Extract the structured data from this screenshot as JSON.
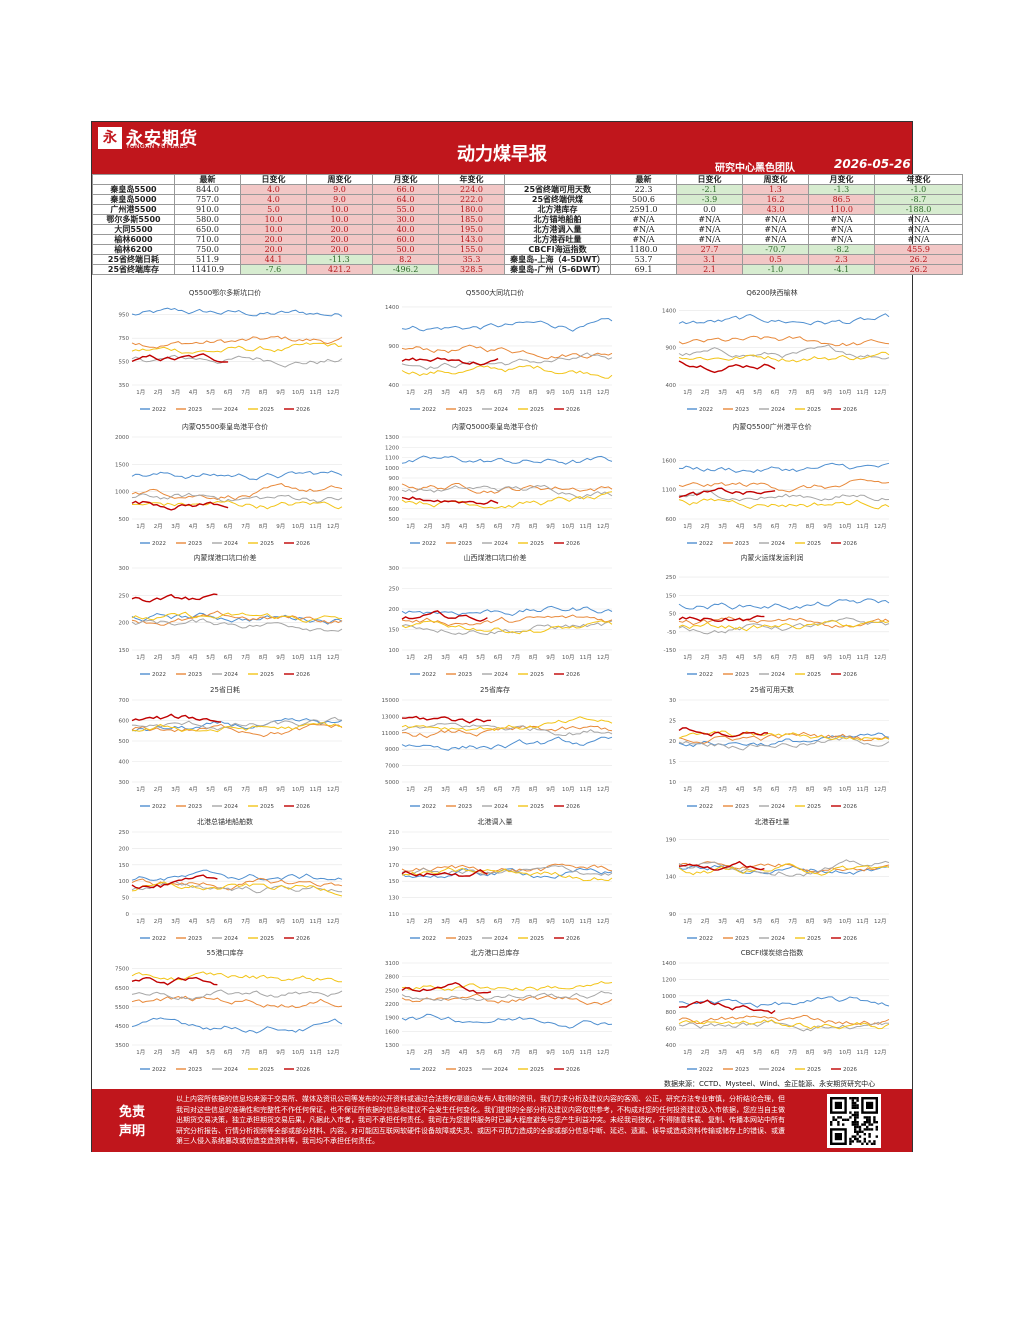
{
  "header": {
    "logo_cn": "永安期货",
    "logo_en": "YONGAN FUTURES",
    "title": "动力煤早报",
    "team": "研究中心黑色团队",
    "date": "2026-05-26"
  },
  "table": {
    "headers_left": [
      "",
      "最新",
      "日变化",
      "周变化",
      "月变化",
      "年变化"
    ],
    "headers_right": [
      "",
      "最新",
      "日变化",
      "周变化",
      "月变化",
      "年变化"
    ],
    "rows": [
      {
        "l": [
          "秦皇岛5500",
          "844.0",
          "4.0",
          "9.0",
          "66.0",
          "224.0"
        ],
        "r": [
          "25省终端可用天数",
          "22.3",
          "-2.1",
          "1.3",
          "-1.3",
          "-1.0"
        ]
      },
      {
        "l": [
          "秦皇岛5000",
          "757.0",
          "4.0",
          "9.0",
          "64.0",
          "222.0"
        ],
        "r": [
          "25省终端供煤",
          "500.6",
          "-3.9",
          "16.2",
          "86.5",
          "-8.7"
        ]
      },
      {
        "l": [
          "广州港5500",
          "910.0",
          "5.0",
          "10.0",
          "55.0",
          "180.0"
        ],
        "r": [
          "北方港库存",
          "2591.0",
          "0.0",
          "43.0",
          "110.0",
          "-188.0"
        ]
      },
      {
        "l": [
          "鄂尔多斯5500",
          "580.0",
          "10.0",
          "10.0",
          "30.0",
          "185.0"
        ],
        "r": [
          "北方锚地船舶",
          "#N/A",
          "#N/A",
          "#N/A",
          "#N/A",
          "#N/A"
        ]
      },
      {
        "l": [
          "大同5500",
          "650.0",
          "10.0",
          "20.0",
          "40.0",
          "195.0"
        ],
        "r": [
          "北方港调入量",
          "#N/A",
          "#N/A",
          "#N/A",
          "#N/A",
          "#N/A"
        ]
      },
      {
        "l": [
          "榆林6000",
          "710.0",
          "20.0",
          "20.0",
          "60.0",
          "143.0"
        ],
        "r": [
          "北方港吞吐量",
          "#N/A",
          "#N/A",
          "#N/A",
          "#N/A",
          "#N/A"
        ]
      },
      {
        "l": [
          "榆林6200",
          "750.0",
          "20.0",
          "20.0",
          "50.0",
          "155.0"
        ],
        "r": [
          "CBCFI海运指数",
          "1180.0",
          "27.7",
          "-70.7",
          "-8.2",
          "455.9"
        ]
      },
      {
        "l": [
          "25省终端日耗",
          "511.9",
          "44.1",
          "-11.3",
          "8.2",
          "35.3"
        ],
        "r": [
          "秦皇岛-上海（4-5DWT）",
          "53.7",
          "3.1",
          "0.5",
          "2.3",
          "26.2"
        ]
      },
      {
        "l": [
          "25省终端库存",
          "11410.9",
          "-7.6",
          "421.2",
          "-496.2",
          "328.5"
        ],
        "r": [
          "秦皇岛-广州（5-6DWT）",
          "69.1",
          "2.1",
          "-1.0",
          "-4.1",
          "26.2"
        ]
      }
    ]
  },
  "legend": [
    "2022",
    "2023",
    "2024",
    "2025",
    "2026"
  ],
  "months": [
    "1月",
    "2月",
    "3月",
    "4月",
    "5月",
    "6月",
    "7月",
    "8月",
    "9月",
    "10月",
    "11月",
    "12月"
  ],
  "colors": {
    "2022": "#4f8fd0",
    "2023": "#e8893a",
    "2024": "#a6a6a6",
    "2025": "#f2c418",
    "2026": "#c00000",
    "brand": "#c0161c"
  },
  "chart_data": [
    {
      "type": "line",
      "title": "Q5500鄂尔多斯坑口价",
      "yticks": [
        350,
        550,
        750,
        950
      ],
      "ylim": [
        350,
        1050
      ],
      "base": [
        950,
        720,
        570,
        650,
        560
      ],
      "end2026": 5.5
    },
    {
      "type": "line",
      "title": "Q5500大同坑口价",
      "yticks": [
        400,
        900,
        1400
      ],
      "ylim": [
        400,
        1450
      ],
      "base": [
        1150,
        850,
        700,
        600,
        700
      ],
      "end2026": 5.5
    },
    {
      "type": "line",
      "title": "Q6200陕西榆林",
      "yticks": [
        400,
        900,
        1400
      ],
      "ylim": [
        400,
        1500
      ],
      "base": [
        1250,
        950,
        800,
        800,
        720
      ],
      "end2026": 5.5
    },
    {
      "type": "line",
      "title": "内蒙Q5500秦皇岛港平仓价",
      "yticks": [
        500,
        1000,
        1500,
        2000
      ],
      "ylim": [
        500,
        2000
      ],
      "base": [
        1300,
        1000,
        880,
        750,
        800
      ],
      "end2026": 5.5
    },
    {
      "type": "line",
      "title": "内蒙Q5000秦皇岛港平仓价",
      "yticks": [
        500,
        600,
        700,
        800,
        900,
        1000,
        1100,
        1200,
        1300
      ],
      "ylim": [
        500,
        1300
      ],
      "base": [
        1050,
        820,
        780,
        680,
        700
      ],
      "end2026": 5.5
    },
    {
      "type": "line",
      "title": "内蒙Q5500广州港平仓价",
      "yticks": [
        600,
        1100,
        1600
      ],
      "ylim": [
        600,
        2000
      ],
      "base": [
        1450,
        1150,
        1000,
        900,
        1000
      ],
      "end2026": 5.5
    },
    {
      "type": "line",
      "title": "内蒙煤港口坑口价差",
      "yticks": [
        150,
        200,
        250,
        300
      ],
      "ylim": [
        150,
        300
      ],
      "base": [
        210,
        205,
        200,
        205,
        240
      ],
      "end2026": 5
    },
    {
      "type": "line",
      "title": "山西煤港口坑口价差",
      "yticks": [
        100,
        150,
        200,
        250,
        300
      ],
      "ylim": [
        100,
        300
      ],
      "base": [
        200,
        170,
        160,
        155,
        175
      ],
      "end2026": 5
    },
    {
      "type": "line",
      "title": "内蒙火运煤发运利润",
      "yticks": [
        -150,
        -50,
        50,
        150,
        250
      ],
      "ylim": [
        -150,
        300
      ],
      "base": [
        100,
        0,
        -20,
        -20,
        20
      ],
      "end2026": 5
    },
    {
      "type": "line",
      "title": "25省日耗",
      "yticks": [
        300,
        400,
        500,
        600,
        700
      ],
      "ylim": [
        300,
        700
      ],
      "base": [
        560,
        560,
        570,
        560,
        600
      ],
      "end2026": 5.2
    },
    {
      "type": "line",
      "title": "25省库存",
      "yticks": [
        5000,
        7000,
        9000,
        11000,
        13000,
        15000
      ],
      "ylim": [
        5000,
        15000
      ],
      "base": [
        9500,
        11000,
        11500,
        12000,
        12500
      ],
      "end2026": 5.2
    },
    {
      "type": "line",
      "title": "25省可用天数",
      "yticks": [
        10,
        15,
        20,
        25,
        30
      ],
      "ylim": [
        10,
        30
      ],
      "base": [
        20,
        21,
        20,
        21,
        23
      ],
      "end2026": 5.2
    },
    {
      "type": "line",
      "title": "北港总锚地船舶数",
      "yticks": [
        0,
        50,
        100,
        150,
        200,
        250
      ],
      "ylim": [
        0,
        250
      ],
      "base": [
        110,
        90,
        80,
        75,
        85
      ],
      "end2026": 5
    },
    {
      "type": "line",
      "title": "北港调入量",
      "yticks": [
        110,
        130,
        150,
        170,
        190,
        210
      ],
      "ylim": [
        110,
        210
      ],
      "base": [
        160,
        165,
        160,
        158,
        160
      ],
      "end2026": 5
    },
    {
      "type": "line",
      "title": "北港吞吐量",
      "yticks": [
        90,
        140,
        190
      ],
      "ylim": [
        90,
        200
      ],
      "base": [
        150,
        158,
        155,
        150,
        152
      ],
      "end2026": 5
    },
    {
      "type": "line",
      "title": "55港口库存",
      "yticks": [
        3500,
        4500,
        5500,
        6500,
        7500
      ],
      "ylim": [
        3500,
        7800
      ],
      "base": [
        4500,
        5800,
        6200,
        7000,
        6800
      ],
      "end2026": 5
    },
    {
      "type": "line",
      "title": "北方港口总库存",
      "yticks": [
        1300,
        1600,
        1900,
        2200,
        2500,
        2800,
        3100
      ],
      "ylim": [
        1300,
        3100
      ],
      "base": [
        1900,
        2300,
        2400,
        2600,
        2500
      ],
      "end2026": 5.2
    },
    {
      "type": "line",
      "title": "CBCFI煤炭综合指数",
      "yticks": [
        400,
        600,
        800,
        1000,
        1200,
        1400
      ],
      "ylim": [
        400,
        1400
      ],
      "base": [
        900,
        700,
        650,
        650,
        850
      ],
      "end2026": 5.5
    }
  ],
  "source": "数据来源：CCTD、Mysteel、Wind、金正能源、永安期货研究中心",
  "disclaimer": {
    "title_line1": "免责",
    "title_line2": "声明",
    "text": "以上内容所依据的信息均来源于交易所、媒体及资讯公司等发布的公开资料或通过合法授权渠道向发布人取得的资讯，我们力求分析及建议内容的客观、公正，研究方法专业审慎，分析结论合理，但我司对这些信息的准确性和完整性不作任何保证，也不保证所依据的信息和建议不会发生任何变化。我们提供的全部分析及建议内容仅供参考，不构成对您的任何投资建议及入市依据，您应当自主做出期货交易决策，独立承担期货交易后果，凡据此入市者，我司不承担任何责任。我司在为您提供服务时已最大程度避免与您产生利益冲突。未经我司授权，不得随意转载、复制、传播本网站中所有研究分析报告、行情分析视频等全部或部分材料、内容。对可能因互联网软硬件设备故障或失灵、或因不可抗力造成的全部或部分信息中断、延迟、遗漏、误导或造成资料传输或储存上的错误、或遭第三人侵入系统篡改或伪造变造资料等，我司均不承担任何责任。"
  }
}
